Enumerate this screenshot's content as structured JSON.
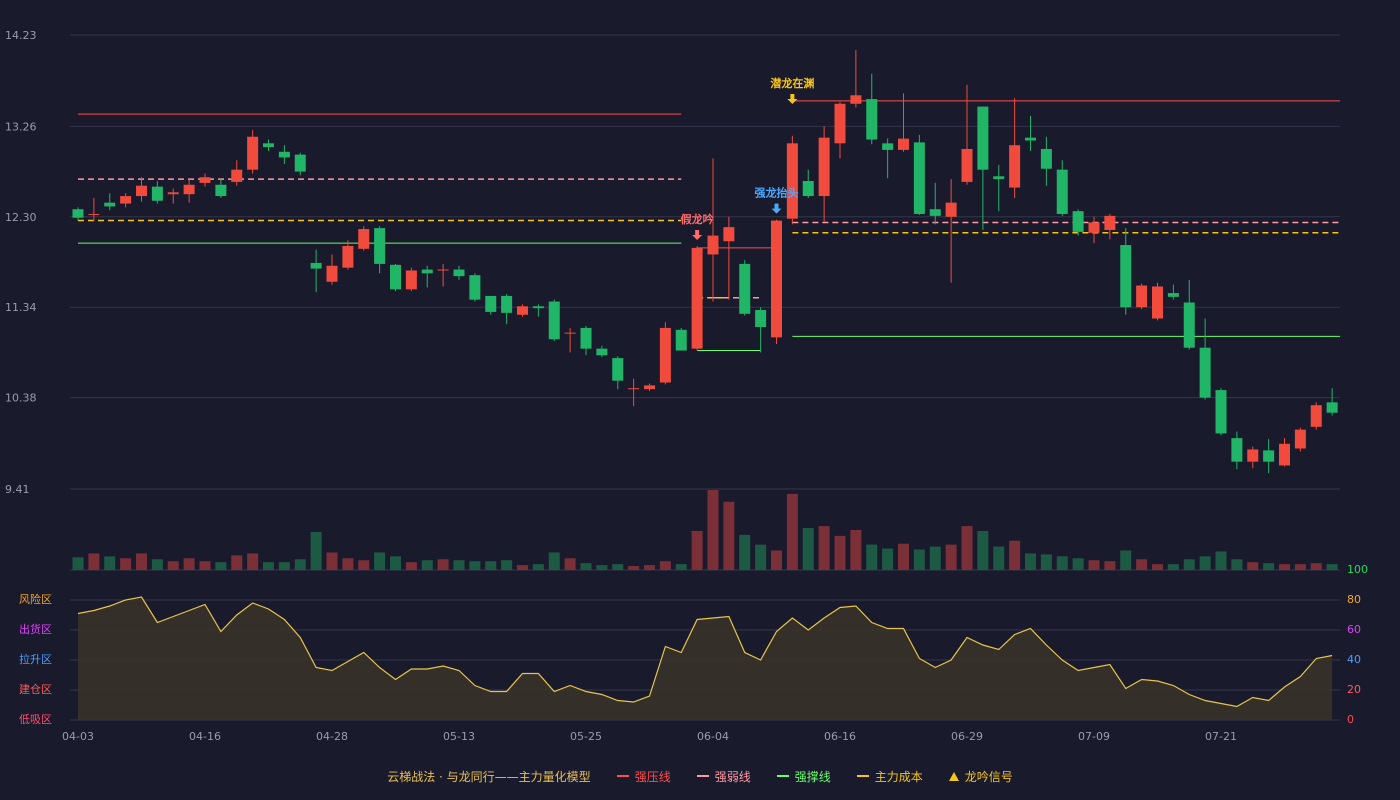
{
  "chart_data": {
    "type": "candlestick",
    "categories": [
      "04-03",
      null,
      null,
      null,
      null,
      null,
      null,
      null,
      "04-16",
      null,
      null,
      null,
      null,
      null,
      null,
      null,
      "04-28",
      null,
      null,
      null,
      null,
      null,
      null,
      null,
      "05-13",
      null,
      null,
      null,
      null,
      null,
      null,
      null,
      "05-25",
      null,
      null,
      null,
      null,
      null,
      null,
      null,
      "06-04",
      null,
      null,
      null,
      null,
      null,
      null,
      null,
      "06-16",
      null,
      null,
      null,
      null,
      null,
      null,
      null,
      "06-29",
      null,
      null,
      null,
      null,
      null,
      null,
      null,
      "07-09",
      null,
      null,
      null,
      null,
      null,
      null,
      null,
      "07-21",
      null,
      null,
      null,
      null,
      null,
      null,
      null
    ],
    "open": [
      12.38,
      12.32,
      12.45,
      12.44,
      12.52,
      12.62,
      12.54,
      12.54,
      12.66,
      12.64,
      12.67,
      12.8,
      13.08,
      12.99,
      12.96,
      11.81,
      11.61,
      11.76,
      11.96,
      12.18,
      11.79,
      11.53,
      11.74,
      11.73,
      11.74,
      11.68,
      11.46,
      11.46,
      11.26,
      11.35,
      11.4,
      11.06,
      11.12,
      10.9,
      10.8,
      10.47,
      10.47,
      10.54,
      11.1,
      10.9,
      11.9,
      12.04,
      11.8,
      11.31,
      11.02,
      12.28,
      12.68,
      12.52,
      13.08,
      13.5,
      13.55,
      13.08,
      13.01,
      13.09,
      12.38,
      12.3,
      12.67,
      13.47,
      12.73,
      12.61,
      13.14,
      13.02,
      12.8,
      12.36,
      12.13,
      12.16,
      12.0,
      11.34,
      11.22,
      11.49,
      11.39,
      10.91,
      10.46,
      9.95,
      9.7,
      9.82,
      9.66,
      9.84,
      10.07,
      10.33
    ],
    "close": [
      12.29,
      12.33,
      12.41,
      12.52,
      12.63,
      12.47,
      12.56,
      12.64,
      12.72,
      12.52,
      12.8,
      13.15,
      13.04,
      12.93,
      12.78,
      11.75,
      11.78,
      11.99,
      12.17,
      11.8,
      11.53,
      11.73,
      11.7,
      11.74,
      11.67,
      11.42,
      11.29,
      11.28,
      11.35,
      11.33,
      11.0,
      11.07,
      10.9,
      10.83,
      10.56,
      10.48,
      10.51,
      11.12,
      10.88,
      11.97,
      12.1,
      12.19,
      11.27,
      11.13,
      12.26,
      13.08,
      12.52,
      13.14,
      13.5,
      13.59,
      13.12,
      13.01,
      13.13,
      12.33,
      12.31,
      12.45,
      13.02,
      12.8,
      12.7,
      13.06,
      13.11,
      12.81,
      12.33,
      12.14,
      12.24,
      12.31,
      11.34,
      11.57,
      11.56,
      11.45,
      10.91,
      10.38,
      10.0,
      9.7,
      9.83,
      9.7,
      9.89,
      10.04,
      10.3,
      10.22
    ],
    "high": [
      12.4,
      12.5,
      12.55,
      12.55,
      12.72,
      12.68,
      12.6,
      12.7,
      12.76,
      12.7,
      12.9,
      13.22,
      13.12,
      13.06,
      12.98,
      11.95,
      11.9,
      12.05,
      12.2,
      12.2,
      11.8,
      11.76,
      11.78,
      11.8,
      11.78,
      11.7,
      11.46,
      11.48,
      11.37,
      11.37,
      11.42,
      11.12,
      11.14,
      10.93,
      10.82,
      10.58,
      10.53,
      11.18,
      11.12,
      11.99,
      12.92,
      12.3,
      11.84,
      11.34,
      12.27,
      13.16,
      12.8,
      13.26,
      13.52,
      14.07,
      13.82,
      13.13,
      13.61,
      13.17,
      12.66,
      12.7,
      13.7,
      13.47,
      12.85,
      13.56,
      13.37,
      13.15,
      12.9,
      12.38,
      12.3,
      12.33,
      12.18,
      11.59,
      11.6,
      11.58,
      11.63,
      11.22,
      10.48,
      10.02,
      9.86,
      9.94,
      9.95,
      10.06,
      10.33,
      10.48
    ],
    "low": [
      12.26,
      12.25,
      12.37,
      12.4,
      12.46,
      12.44,
      12.44,
      12.45,
      12.62,
      12.5,
      12.63,
      12.76,
      13.0,
      12.86,
      12.74,
      11.5,
      11.58,
      11.74,
      11.94,
      11.7,
      11.51,
      11.51,
      11.55,
      11.56,
      11.63,
      11.4,
      11.26,
      11.16,
      11.24,
      11.24,
      10.98,
      10.86,
      10.83,
      10.81,
      10.47,
      10.29,
      10.45,
      10.52,
      10.88,
      10.88,
      11.4,
      11.42,
      11.25,
      10.86,
      10.95,
      12.22,
      12.5,
      12.25,
      12.92,
      13.46,
      13.07,
      12.71,
      12.99,
      12.32,
      12.22,
      11.6,
      12.64,
      12.16,
      12.36,
      12.5,
      13.0,
      12.63,
      12.31,
      12.1,
      12.02,
      12.06,
      11.26,
      11.32,
      11.2,
      11.42,
      10.89,
      10.36,
      9.98,
      9.62,
      9.63,
      9.58,
      9.65,
      9.81,
      10.04,
      10.19
    ],
    "volume": [
      13,
      17,
      14,
      12,
      17,
      11,
      9,
      12,
      9,
      8,
      15,
      17,
      8,
      8,
      11,
      39,
      18,
      12,
      10,
      18,
      14,
      8,
      10,
      11,
      10,
      9,
      9,
      10,
      5,
      6,
      18,
      12,
      7,
      5,
      6,
      4,
      5,
      9,
      6,
      40,
      82,
      70,
      36,
      26,
      20,
      78,
      43,
      45,
      35,
      41,
      26,
      22,
      27,
      21,
      24,
      26,
      45,
      40,
      24,
      30,
      17,
      16,
      14,
      12,
      10,
      9,
      20,
      11,
      6,
      6,
      11,
      14,
      19,
      11,
      8,
      7,
      6,
      6,
      7,
      6
    ],
    "up_color": "#f04b3c",
    "down_color": "#21b567",
    "up_volume_color": "#7b2f37",
    "down_volume_color": "#1d5a44",
    "ylim": [
      9.41,
      14.23
    ],
    "yticks": [
      9.41,
      10.38,
      {
        "value": 11.34,
        "label": "11.34"
      },
      {
        "value": 12.3,
        "label": "12.30"
      },
      13.26,
      14.23
    ],
    "grid": true,
    "levels": [
      {
        "name": "强压线",
        "color": "#ff4d4d",
        "dash": false,
        "segments": [
          {
            "from": 0,
            "to": 38,
            "value": 13.39
          },
          {
            "from": 39,
            "to": 44,
            "value": 11.97
          },
          {
            "from": 45,
            "to": 79,
            "value": 13.53
          }
        ]
      },
      {
        "name": "强弱线",
        "color": "#ff9aa2",
        "dash": true,
        "segments": [
          {
            "from": 0,
            "to": 38,
            "value": 12.7
          },
          {
            "from": 40,
            "to": 43,
            "value": 11.44
          },
          {
            "from": 45,
            "to": 79,
            "value": 12.24
          }
        ]
      },
      {
        "name": "强撑线",
        "color": "#66ff66",
        "dash": false,
        "segments": [
          {
            "from": 0,
            "to": 38,
            "value": 12.02
          },
          {
            "from": 39,
            "to": 43,
            "value": 10.88
          },
          {
            "from": 45,
            "to": 79,
            "value": 11.03
          }
        ]
      },
      {
        "name": "主力成本",
        "color": "#f5c518",
        "dash": true,
        "segments": [
          {
            "from": 0,
            "to": 38,
            "value": 12.26
          },
          {
            "from": 39,
            "to": 41,
            "value": 11.44
          },
          {
            "from": 45,
            "to": 79,
            "value": 12.13
          }
        ]
      }
    ],
    "signals": [
      {
        "index": 39,
        "label": "假龙吟",
        "color": "#ff6b6b"
      },
      {
        "index": 44,
        "label": "强龙抬头",
        "color": "#4aa8ff"
      },
      {
        "index": 45,
        "label": "潜龙在渊",
        "color": "#f5c518"
      }
    ],
    "indicator": {
      "values": [
        71,
        73,
        76,
        80,
        82,
        65,
        69,
        73,
        77,
        59,
        70,
        78,
        74,
        67,
        55,
        35,
        33,
        39,
        45,
        35,
        27,
        34,
        34,
        36,
        33,
        23,
        19,
        19,
        31,
        31,
        19,
        23,
        19,
        17,
        13,
        12,
        16,
        49,
        45,
        67,
        68,
        69,
        45,
        40,
        59,
        68,
        60,
        68,
        75,
        76,
        65,
        61,
        61,
        41,
        35,
        40,
        55,
        50,
        47,
        57,
        61,
        50,
        40,
        33,
        35,
        37,
        21,
        27,
        26,
        23,
        17,
        13,
        11,
        9,
        15,
        13,
        22,
        29,
        41,
        43
      ],
      "color": "#e8c547",
      "fill": "#3a3428",
      "ylim": [
        0,
        100
      ],
      "yticks": [
        0,
        20,
        40,
        60,
        80,
        100
      ],
      "ytick_colors": [
        "#ff4d4d",
        "#ff5a5a",
        "#4a9eff",
        "#e040fb",
        "#f5a623",
        "#22dd55"
      ],
      "zones": [
        {
          "label": "低吸区",
          "value": 0,
          "color": "#ff4d6d"
        },
        {
          "label": "建仓区",
          "value": 20,
          "color": "#ff5a5a"
        },
        {
          "label": "拉升区",
          "value": 40,
          "color": "#4a9eff"
        },
        {
          "label": "出货区",
          "value": 60,
          "color": "#e040fb"
        },
        {
          "label": "风险区",
          "value": 80,
          "color": "#f5a623"
        }
      ]
    },
    "legend_title": "云梯战法 · 与龙同行——主力量化模型",
    "legend_title_color": "#e8c050",
    "signal_legend": "龙吟信号"
  }
}
